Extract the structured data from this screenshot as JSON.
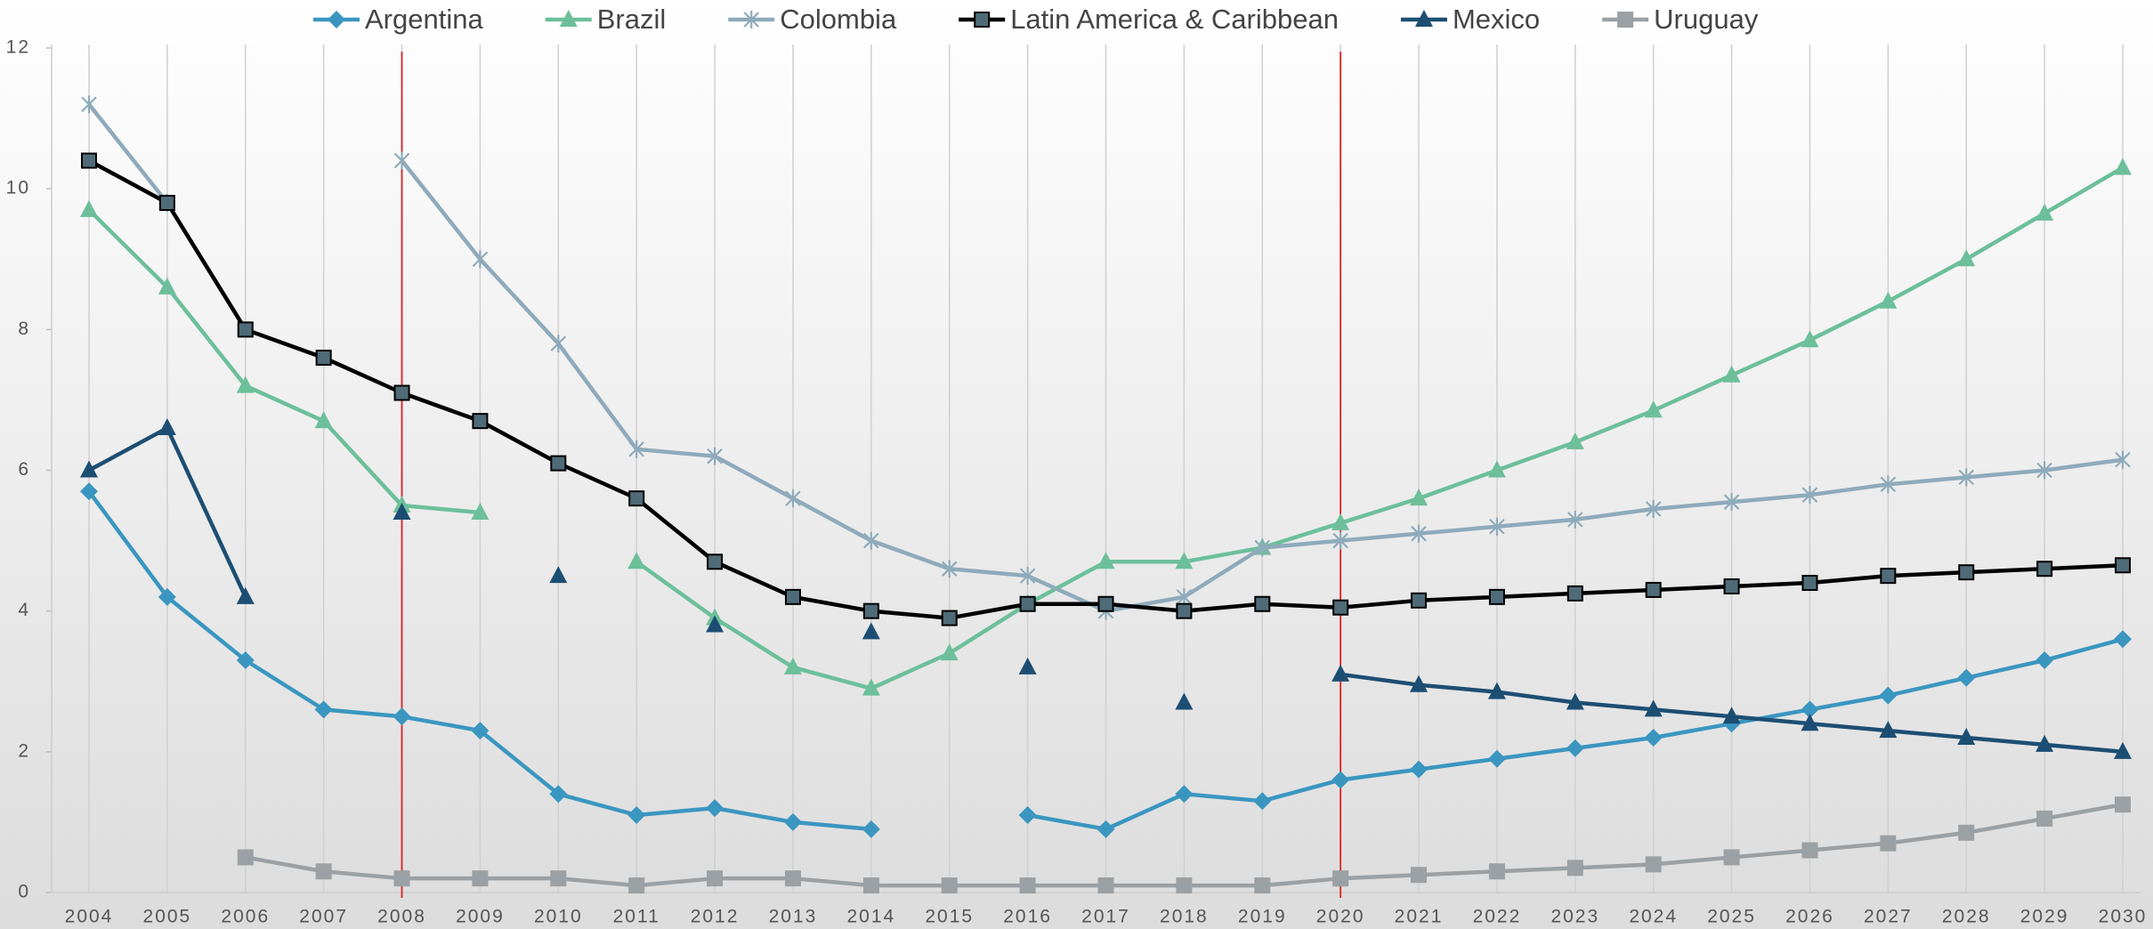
{
  "chart_data": {
    "type": "line",
    "categories": [
      "2004",
      "2005",
      "2006",
      "2007",
      "2008",
      "2009",
      "2010",
      "2011",
      "2012",
      "2013",
      "2014",
      "2015",
      "2016",
      "2017",
      "2018",
      "2019",
      "2020",
      "2021",
      "2022",
      "2023",
      "2024",
      "2025",
      "2026",
      "2027",
      "2028",
      "2029",
      "2030"
    ],
    "series": [
      {
        "name": "Argentina",
        "color": "#3a96c0",
        "marker": "diamond",
        "values": [
          5.7,
          4.2,
          3.3,
          2.6,
          2.5,
          2.3,
          1.4,
          1.1,
          1.2,
          1.0,
          0.9,
          null,
          1.1,
          0.9,
          1.4,
          1.3,
          1.6,
          1.75,
          1.9,
          2.05,
          2.2,
          2.4,
          2.6,
          2.8,
          3.05,
          3.3,
          3.6
        ]
      },
      {
        "name": "Brazil",
        "color": "#6cbf9a",
        "marker": "triangle",
        "values": [
          9.7,
          8.6,
          7.2,
          6.7,
          5.5,
          5.4,
          null,
          4.7,
          3.9,
          3.2,
          2.9,
          3.4,
          4.1,
          4.7,
          4.7,
          4.9,
          5.25,
          5.6,
          6.0,
          6.4,
          6.85,
          7.35,
          7.85,
          8.4,
          9.0,
          9.65,
          10.3
        ]
      },
      {
        "name": "Colombia",
        "color": "#8eaabb",
        "marker": "star",
        "values": [
          11.2,
          9.8,
          null,
          null,
          10.4,
          9.0,
          7.8,
          6.3,
          6.2,
          5.6,
          5.0,
          4.6,
          4.5,
          4.0,
          4.2,
          4.9,
          5.0,
          5.1,
          5.2,
          5.3,
          5.45,
          5.55,
          5.65,
          5.8,
          5.9,
          6.0,
          6.15
        ]
      },
      {
        "name": "Latin America & Caribbean",
        "color": "#000000",
        "marker_fill": "#4f6b78",
        "marker": "square",
        "values": [
          10.4,
          9.8,
          8.0,
          7.6,
          7.1,
          6.7,
          6.1,
          5.6,
          4.7,
          4.2,
          4.0,
          3.9,
          4.1,
          4.1,
          4.0,
          4.1,
          4.05,
          4.15,
          4.2,
          4.25,
          4.3,
          4.35,
          4.4,
          4.5,
          4.55,
          4.6,
          4.65
        ]
      },
      {
        "name": "Mexico",
        "color": "#1c4e73",
        "marker": "triangle",
        "values": [
          6.0,
          6.6,
          4.2,
          null,
          5.4,
          null,
          4.5,
          null,
          3.8,
          null,
          3.7,
          null,
          3.2,
          null,
          2.7,
          null,
          3.1,
          2.95,
          2.85,
          2.7,
          2.6,
          2.5,
          2.4,
          2.3,
          2.2,
          2.1,
          2.0
        ]
      },
      {
        "name": "Uruguay",
        "color": "#9aa0a3",
        "marker": "square",
        "values": [
          null,
          null,
          0.5,
          0.3,
          0.2,
          0.2,
          0.2,
          0.1,
          0.2,
          0.2,
          0.1,
          0.1,
          0.1,
          0.1,
          0.1,
          0.1,
          0.2,
          0.25,
          0.3,
          0.35,
          0.4,
          0.5,
          0.6,
          0.7,
          0.85,
          1.05,
          1.25
        ]
      }
    ],
    "ylim": [
      0,
      12
    ],
    "yticks": [
      0,
      2,
      4,
      6,
      8,
      10,
      12
    ],
    "grid": "vertical",
    "legend": "top",
    "reference_lines": {
      "color": "#e02020",
      "at": [
        "2008",
        "2020"
      ]
    }
  }
}
